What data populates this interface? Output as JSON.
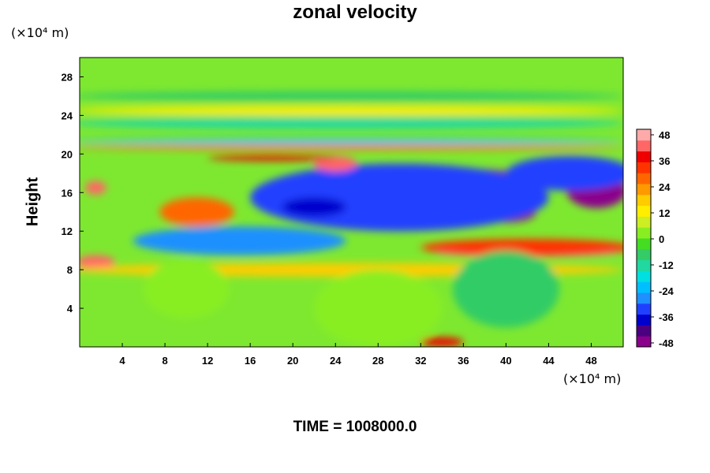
{
  "chart_data": {
    "type": "heatmap",
    "title": "zonal velocity",
    "ylabel": "Height",
    "xlabel": "",
    "x_unit": "(×10⁴ m)",
    "y_unit": "(×10⁴ m)",
    "footer": "TIME = 1008000.0",
    "xlim": [
      0,
      51
    ],
    "ylim": [
      0,
      30
    ],
    "x_ticks": [
      "4",
      "8",
      "12",
      "16",
      "20",
      "24",
      "28",
      "32",
      "36",
      "40",
      "44",
      "48"
    ],
    "y_ticks": [
      "4",
      "8",
      "12",
      "16",
      "20",
      "24",
      "28"
    ],
    "colorbar": {
      "range": [
        -52,
        52
      ],
      "ticks": [
        "48",
        "36",
        "24",
        "12",
        "0",
        "-12",
        "-24",
        "-36",
        "-48"
      ],
      "colors_low_to_high": [
        "#8b008b",
        "#4b0082",
        "#0000cd",
        "#2040ff",
        "#1e90ff",
        "#00bfff",
        "#00e0e0",
        "#20d8a0",
        "#33cc66",
        "#44dd22",
        "#88ee22",
        "#ccee22",
        "#ffee00",
        "#ffcc00",
        "#ff9900",
        "#ff6600",
        "#ff3300",
        "#ee0000",
        "#ff6666",
        "#ffaaaa"
      ]
    },
    "background_color": "#7ee830",
    "features": [
      {
        "x": 33,
        "y": 17.0,
        "rx": 11.0,
        "ry": 1.6,
        "value": -50
      },
      {
        "x": 40,
        "y": 13.9,
        "rx": 2.8,
        "ry": 1.0,
        "value": -50
      },
      {
        "x": 48.5,
        "y": 16.2,
        "rx": 2.8,
        "ry": 1.8,
        "value": -50
      },
      {
        "x": 30,
        "y": 15.5,
        "rx": 14.0,
        "ry": 3.5,
        "value": -32
      },
      {
        "x": 15,
        "y": 11.0,
        "rx": 10.0,
        "ry": 1.5,
        "value": -30
      },
      {
        "x": 46,
        "y": 18.0,
        "rx": 6.0,
        "ry": 1.8,
        "value": -35
      },
      {
        "x": 42,
        "y": 9.8,
        "rx": 8.5,
        "ry": 0.45,
        "value": 48
      },
      {
        "x": 42,
        "y": 10.3,
        "rx": 10.0,
        "ry": 0.9,
        "value": 32
      },
      {
        "x": 1.5,
        "y": 8.8,
        "rx": 1.8,
        "ry": 0.7,
        "value": 42
      },
      {
        "x": 1.5,
        "y": 16.5,
        "rx": 1.0,
        "ry": 0.7,
        "value": 42
      },
      {
        "x": 24,
        "y": 19.0,
        "rx": 2.0,
        "ry": 0.8,
        "value": 42
      },
      {
        "x": 18,
        "y": 19.6,
        "rx": 6.0,
        "ry": 0.3,
        "value": 40
      },
      {
        "x": 25,
        "y": 20.7,
        "rx": 26.0,
        "ry": 0.25,
        "value": 28
      },
      {
        "x": 25,
        "y": 21.3,
        "rx": 26.0,
        "ry": 0.3,
        "value": -24
      },
      {
        "x": 25,
        "y": 23.2,
        "rx": 26.0,
        "ry": 0.6,
        "value": -14
      },
      {
        "x": 25,
        "y": 24.5,
        "rx": 26.0,
        "ry": 0.5,
        "value": 14
      },
      {
        "x": 25,
        "y": 26.0,
        "rx": 26.0,
        "ry": 0.5,
        "value": -8
      },
      {
        "x": 25,
        "y": 8.0,
        "rx": 26.0,
        "ry": 0.7,
        "value": 16
      },
      {
        "x": 10,
        "y": 6.0,
        "rx": 4.0,
        "ry": 3.0,
        "value": 5
      },
      {
        "x": 28,
        "y": 4.0,
        "rx": 6.0,
        "ry": 4.0,
        "value": 3
      },
      {
        "x": 40,
        "y": 6.0,
        "rx": 5.0,
        "ry": 4.0,
        "value": -10
      },
      {
        "x": 22,
        "y": 14.5,
        "rx": 3.0,
        "ry": 1.0,
        "value": -40
      },
      {
        "x": 11,
        "y": 14.0,
        "rx": 3.5,
        "ry": 1.5,
        "value": 30
      },
      {
        "x": 34,
        "y": 0.5,
        "rx": 2.0,
        "ry": 0.5,
        "value": 38
      }
    ]
  }
}
